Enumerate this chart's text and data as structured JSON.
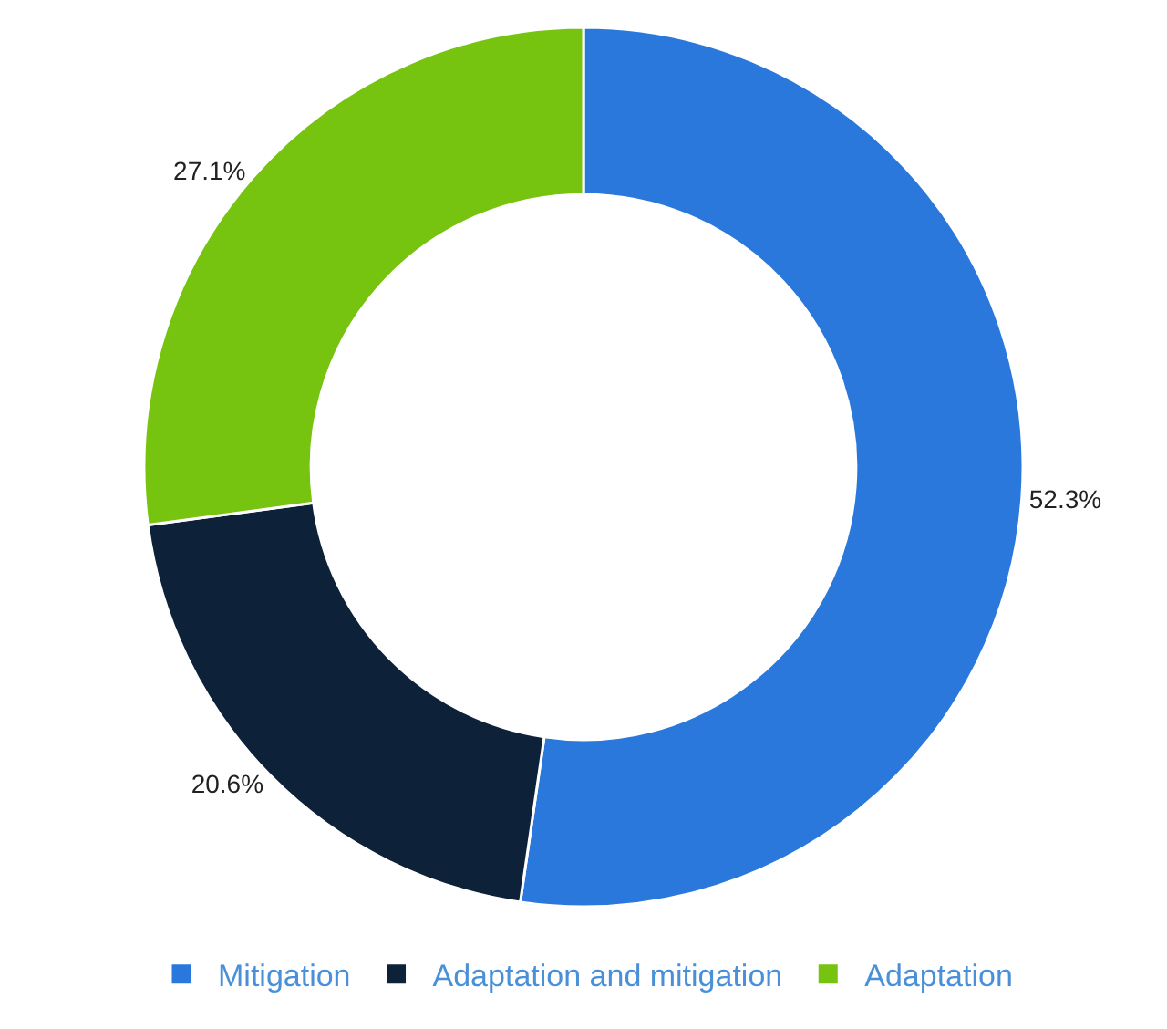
{
  "chart_data": {
    "type": "donut",
    "categories": [
      "Mitigation",
      "Adaptation and mitigation",
      "Adaptation"
    ],
    "values": [
      52.3,
      20.6,
      27.1
    ],
    "colors": [
      "#2a78dc",
      "#0d2139",
      "#76c310"
    ],
    "value_labels": [
      "52.3%",
      "20.6%",
      "27.1%"
    ],
    "legend": "bottom"
  }
}
